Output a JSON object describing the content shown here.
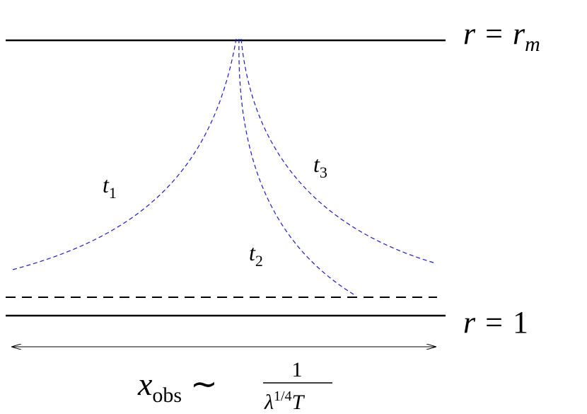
{
  "labels": {
    "top_boundary": {
      "variable": "r",
      "relation": "=",
      "symbol": "r",
      "subscript": "m"
    },
    "bottom_boundary": {
      "variable": "r",
      "relation": "=",
      "value": "1"
    },
    "curves": [
      {
        "symbol": "t",
        "subscript": "1"
      },
      {
        "symbol": "t",
        "subscript": "2"
      },
      {
        "symbol": "t",
        "subscript": "3"
      }
    ],
    "width": {
      "variable": "x",
      "subscript": "obs",
      "relation": "∼",
      "numerator": "1",
      "denominator_symbol": "λ",
      "denominator_exponent": "1/4",
      "denominator_tail": "T"
    }
  }
}
